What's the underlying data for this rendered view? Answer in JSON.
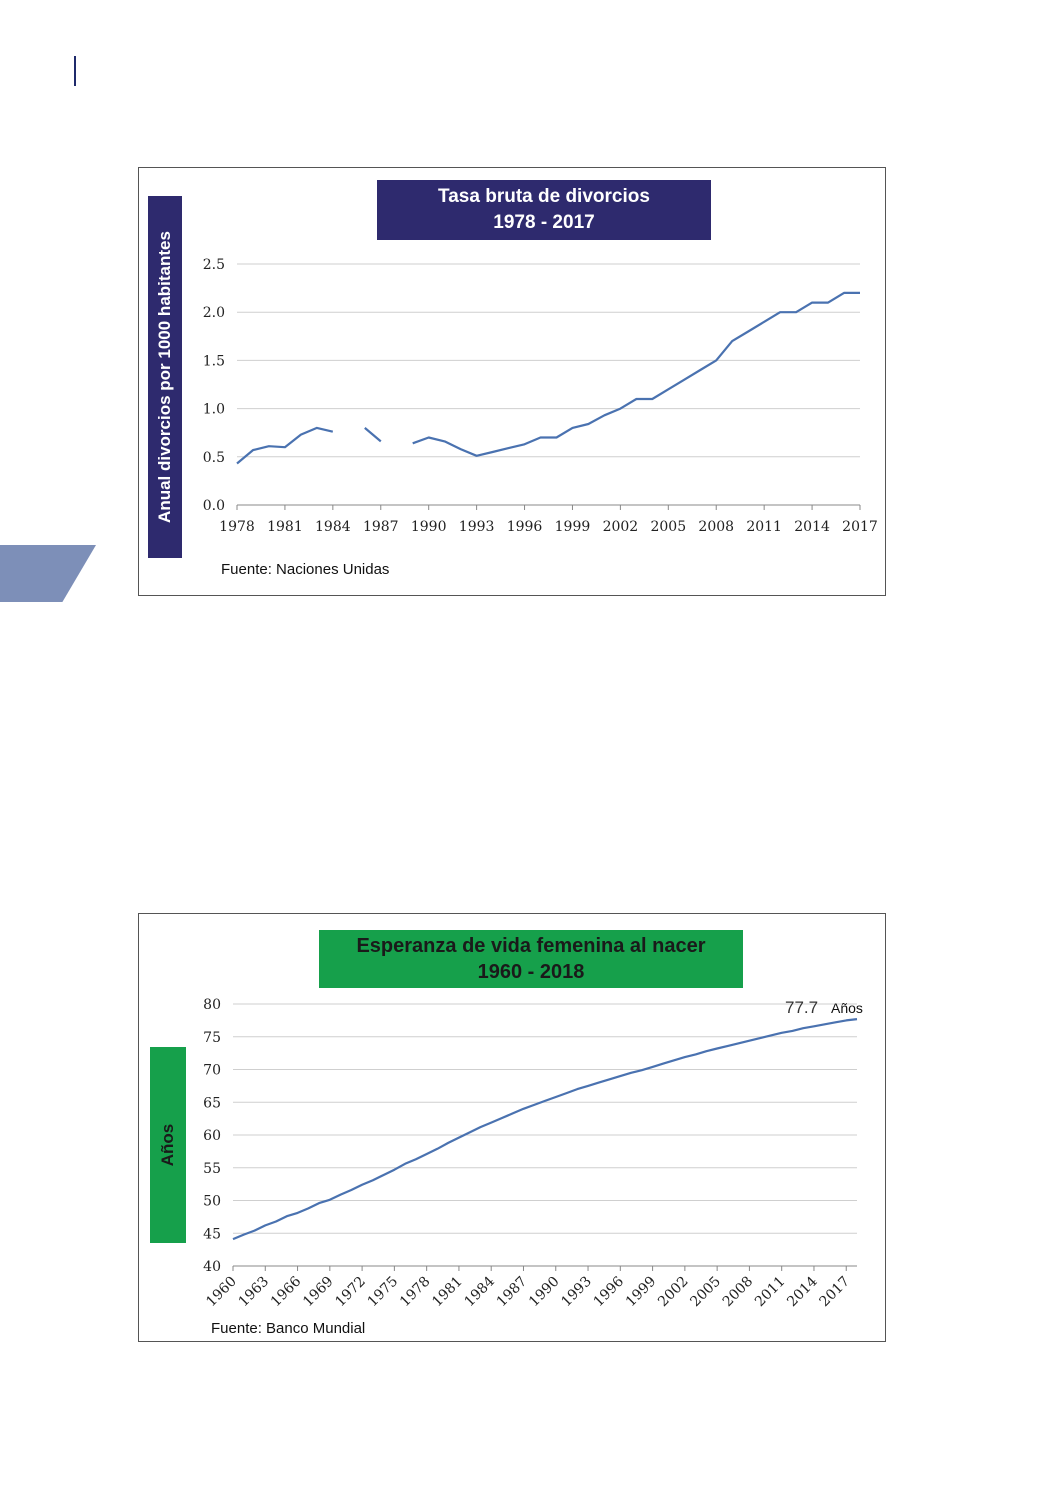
{
  "chart_data": [
    {
      "type": "line",
      "title": "Tasa bruta de divorcios",
      "subtitle": "1978 - 2017",
      "ylabel": "Anual divorcios por 1000 habitantes",
      "xlabel": "",
      "source": "Fuente: Naciones Unidas",
      "ylim": [
        0,
        2.5
      ],
      "yticks": [
        "0.0",
        "0.5",
        "1.0",
        "1.5",
        "2.0",
        "2.5"
      ],
      "xticks": [
        "1978",
        "1981",
        "1984",
        "1987",
        "1990",
        "1993",
        "1996",
        "1999",
        "2002",
        "2005",
        "2008",
        "2011",
        "2014",
        "2017"
      ],
      "grid": true,
      "line_color": "#4a72b0",
      "x": [
        1978,
        1979,
        1980,
        1981,
        1982,
        1983,
        1984,
        1985,
        1986,
        1987,
        1988,
        1989,
        1990,
        1991,
        1992,
        1993,
        1994,
        1995,
        1996,
        1997,
        1998,
        1999,
        2000,
        2001,
        2002,
        2003,
        2004,
        2005,
        2006,
        2007,
        2008,
        2009,
        2010,
        2011,
        2012,
        2013,
        2014,
        2015,
        2016,
        2017
      ],
      "values": [
        0.43,
        0.57,
        0.61,
        0.6,
        0.73,
        0.8,
        0.76,
        null,
        0.8,
        0.66,
        null,
        0.64,
        0.7,
        0.66,
        0.58,
        0.51,
        0.55,
        0.59,
        0.63,
        0.7,
        0.7,
        0.8,
        0.84,
        0.93,
        1.0,
        1.1,
        1.1,
        1.2,
        1.3,
        1.4,
        1.5,
        1.7,
        1.8,
        1.9,
        2.0,
        2.0,
        2.1,
        2.1,
        2.2,
        2.2
      ]
    },
    {
      "type": "line",
      "title": "Esperanza de vida femenina al nacer",
      "subtitle": "1960 - 2018",
      "ylabel": "Años",
      "xlabel": "",
      "source": "Fuente: Banco Mundial",
      "annotation_value": "77.7",
      "annotation_unit": "Años",
      "ylim": [
        40,
        80
      ],
      "yticks": [
        "40",
        "45",
        "50",
        "55",
        "60",
        "65",
        "70",
        "75",
        "80"
      ],
      "xticks": [
        "1960",
        "1963",
        "1966",
        "1969",
        "1972",
        "1975",
        "1978",
        "1981",
        "1984",
        "1987",
        "1990",
        "1993",
        "1996",
        "1999",
        "2002",
        "2005",
        "2008",
        "2011",
        "2014",
        "2017"
      ],
      "grid": true,
      "line_color": "#4a72b0",
      "x": [
        1960,
        1961,
        1962,
        1963,
        1964,
        1965,
        1966,
        1967,
        1968,
        1969,
        1970,
        1971,
        1972,
        1973,
        1974,
        1975,
        1976,
        1977,
        1978,
        1979,
        1980,
        1981,
        1982,
        1983,
        1984,
        1985,
        1986,
        1987,
        1988,
        1989,
        1990,
        1991,
        1992,
        1993,
        1994,
        1995,
        1996,
        1997,
        1998,
        1999,
        2000,
        2001,
        2002,
        2003,
        2004,
        2005,
        2006,
        2007,
        2008,
        2009,
        2010,
        2011,
        2012,
        2013,
        2014,
        2015,
        2016,
        2017,
        2018
      ],
      "values": [
        44.1,
        44.8,
        45.4,
        46.2,
        46.8,
        47.6,
        48.1,
        48.8,
        49.6,
        50.1,
        50.9,
        51.6,
        52.4,
        53.1,
        53.9,
        54.7,
        55.6,
        56.3,
        57.1,
        57.9,
        58.8,
        59.6,
        60.4,
        61.2,
        61.9,
        62.6,
        63.3,
        64.0,
        64.6,
        65.2,
        65.8,
        66.4,
        67.0,
        67.5,
        68.0,
        68.5,
        69.0,
        69.5,
        69.9,
        70.4,
        70.9,
        71.4,
        71.9,
        72.3,
        72.8,
        73.2,
        73.6,
        74.0,
        74.4,
        74.8,
        75.2,
        75.6,
        75.9,
        76.3,
        76.6,
        76.9,
        77.2,
        77.5,
        77.7
      ]
    }
  ]
}
